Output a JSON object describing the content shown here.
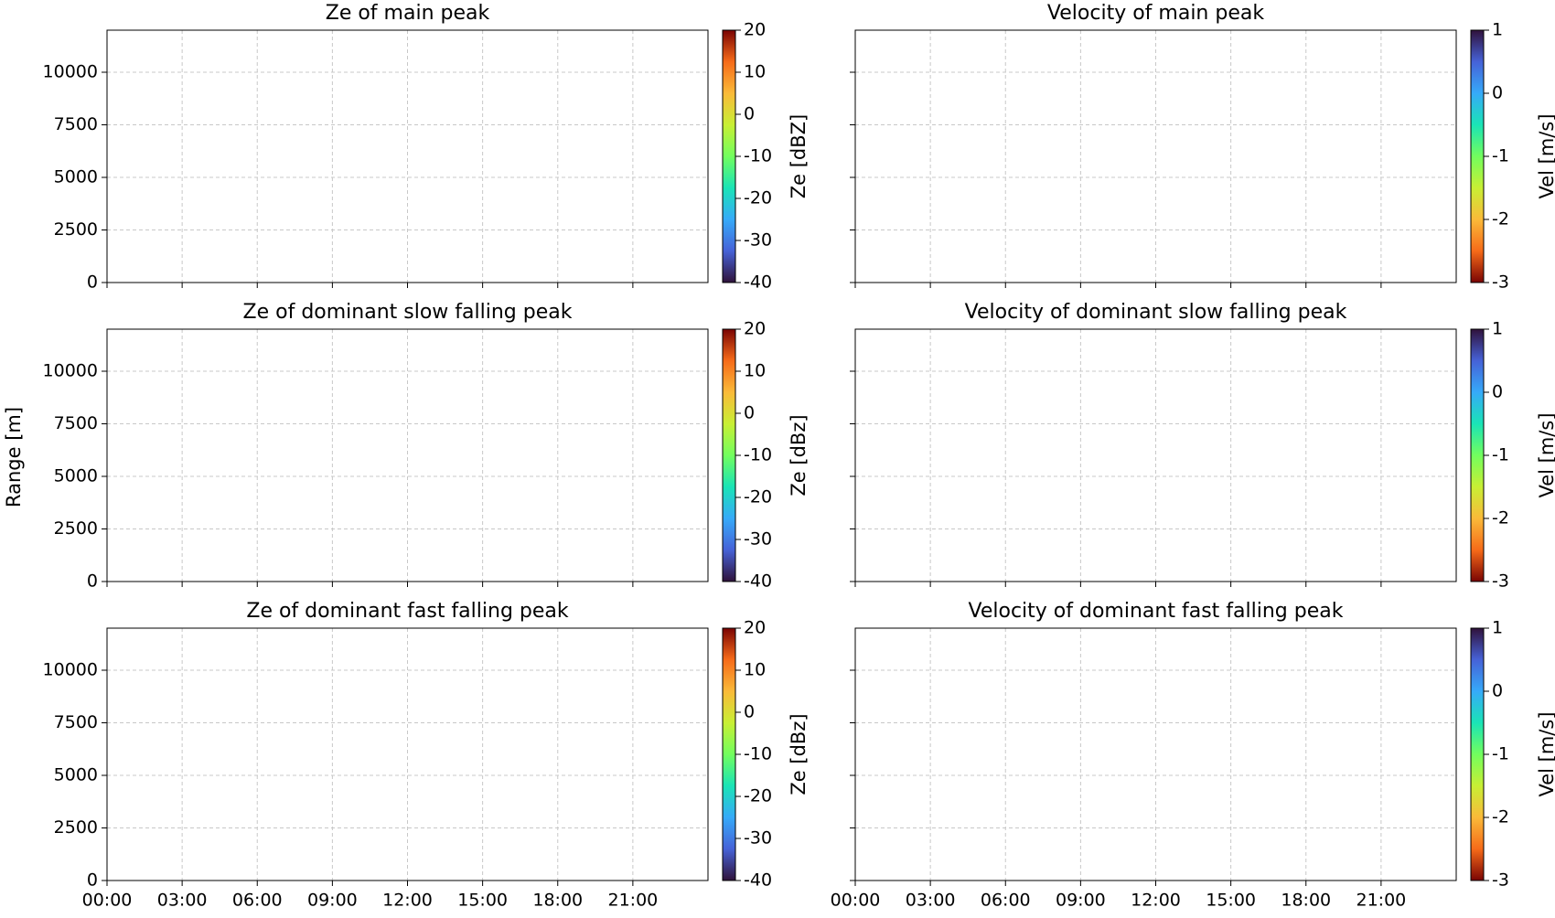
{
  "ylabel": "Range [m]",
  "xlim": [
    0,
    24
  ],
  "xticks": [
    {
      "value": 0,
      "label": "00:00"
    },
    {
      "value": 3,
      "label": "03:00"
    },
    {
      "value": 6,
      "label": "06:00"
    },
    {
      "value": 9,
      "label": "09:00"
    },
    {
      "value": 12,
      "label": "12:00"
    },
    {
      "value": 15,
      "label": "15:00"
    },
    {
      "value": 18,
      "label": "18:00"
    },
    {
      "value": 21,
      "label": "21:00"
    }
  ],
  "chart_data": [
    {
      "type": "heatmap",
      "title": "Ze of main peak",
      "ylim": [
        0,
        12000
      ],
      "yticks": [
        0,
        2500,
        5000,
        7500,
        10000
      ],
      "grid": true,
      "colorbar": {
        "label": "Ze [dBZ]",
        "lim": [
          -40,
          20
        ],
        "ticks": [
          -40,
          -30,
          -20,
          -10,
          0,
          10,
          20
        ],
        "colormap": "turbo",
        "reversed": false
      }
    },
    {
      "type": "heatmap",
      "title": "Velocity of main peak",
      "ylim": [
        0,
        12000
      ],
      "yticks": [
        0,
        2500,
        5000,
        7500,
        10000
      ],
      "grid": true,
      "colorbar": {
        "label": "Vel [m/s]",
        "lim": [
          -3,
          1
        ],
        "ticks": [
          -3,
          -2,
          -1,
          0,
          1
        ],
        "colormap": "turbo",
        "reversed": true
      }
    },
    {
      "type": "heatmap",
      "title": "Ze of dominant slow falling peak",
      "ylim": [
        0,
        12000
      ],
      "yticks": [
        0,
        2500,
        5000,
        7500,
        10000
      ],
      "grid": true,
      "colorbar": {
        "label": "Ze [dBz]",
        "lim": [
          -40,
          20
        ],
        "ticks": [
          -40,
          -30,
          -20,
          -10,
          0,
          10,
          20
        ],
        "colormap": "turbo",
        "reversed": false
      }
    },
    {
      "type": "heatmap",
      "title": "Velocity of dominant slow falling peak",
      "ylim": [
        0,
        12000
      ],
      "yticks": [
        0,
        2500,
        5000,
        7500,
        10000
      ],
      "grid": true,
      "colorbar": {
        "label": "Vel [m/s]",
        "lim": [
          -3,
          1
        ],
        "ticks": [
          -3,
          -2,
          -1,
          0,
          1
        ],
        "colormap": "turbo",
        "reversed": true
      }
    },
    {
      "type": "heatmap",
      "title": "Ze of dominant fast falling peak",
      "ylim": [
        0,
        12000
      ],
      "yticks": [
        0,
        2500,
        5000,
        7500,
        10000
      ],
      "grid": true,
      "colorbar": {
        "label": "Ze [dBz]",
        "lim": [
          -40,
          20
        ],
        "ticks": [
          -40,
          -30,
          -20,
          -10,
          0,
          10,
          20
        ],
        "colormap": "turbo",
        "reversed": false
      }
    },
    {
      "type": "heatmap",
      "title": "Velocity of dominant fast falling peak",
      "ylim": [
        0,
        12000
      ],
      "yticks": [
        0,
        2500,
        5000,
        7500,
        10000
      ],
      "grid": true,
      "colorbar": {
        "label": "Vel [m/s]",
        "lim": [
          -3,
          1
        ],
        "ticks": [
          -3,
          -2,
          -1,
          0,
          1
        ],
        "colormap": "turbo",
        "reversed": true
      }
    }
  ]
}
